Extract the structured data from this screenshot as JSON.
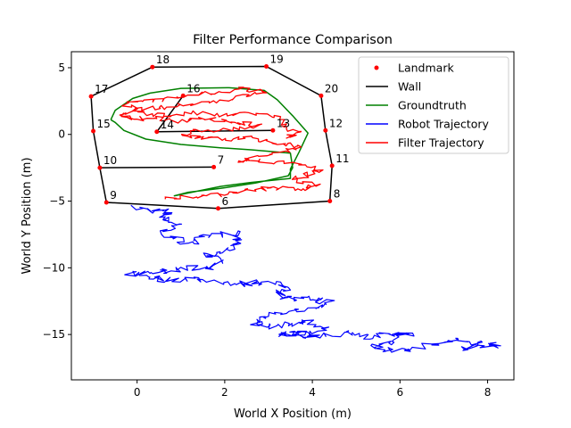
{
  "chart_data": {
    "type": "line",
    "title": "Filter Performance Comparison",
    "xlabel": "World X Position (m)",
    "ylabel": "World Y Position (m)",
    "xlim": [
      -1.5,
      8.6
    ],
    "ylim": [
      -18.4,
      6.2
    ],
    "xticks": [
      0,
      2,
      4,
      6,
      8
    ],
    "yticks": [
      5,
      0,
      -5,
      -10,
      -15
    ],
    "grid": false,
    "legend_position": "top-right",
    "legend": [
      {
        "label": "Landmark",
        "color": "#ff0000",
        "style": "marker"
      },
      {
        "label": "Wall",
        "color": "#000000",
        "style": "line"
      },
      {
        "label": "Groundtruth",
        "color": "#008000",
        "style": "line"
      },
      {
        "label": "Robot Trajectory",
        "color": "#0000ff",
        "style": "line"
      },
      {
        "label": "Filter Trajectory",
        "color": "#ff0000",
        "style": "line"
      }
    ],
    "landmarks": [
      {
        "id": "6",
        "x": 1.85,
        "y": -5.55
      },
      {
        "id": "7",
        "x": 1.75,
        "y": -2.45
      },
      {
        "id": "8",
        "x": 4.4,
        "y": -5.0
      },
      {
        "id": "9",
        "x": -0.7,
        "y": -5.1
      },
      {
        "id": "10",
        "x": -0.85,
        "y": -2.5
      },
      {
        "id": "11",
        "x": 4.45,
        "y": -2.35
      },
      {
        "id": "12",
        "x": 4.3,
        "y": 0.3
      },
      {
        "id": "13",
        "x": 3.1,
        "y": 0.3
      },
      {
        "id": "14",
        "x": 0.45,
        "y": 0.2
      },
      {
        "id": "15",
        "x": -1.0,
        "y": 0.25
      },
      {
        "id": "16",
        "x": 1.05,
        "y": 2.9
      },
      {
        "id": "17",
        "x": -1.05,
        "y": 2.85
      },
      {
        "id": "18",
        "x": 0.35,
        "y": 5.05
      },
      {
        "id": "19",
        "x": 2.95,
        "y": 5.1
      },
      {
        "id": "20",
        "x": 4.2,
        "y": 2.9
      }
    ],
    "walls": [
      [
        [
          0.35,
          5.05
        ],
        [
          2.95,
          5.1
        ],
        [
          4.2,
          2.9
        ],
        [
          4.3,
          0.3
        ],
        [
          4.45,
          -2.35
        ],
        [
          4.4,
          -5.0
        ],
        [
          1.85,
          -5.55
        ],
        [
          -0.7,
          -5.1
        ],
        [
          -0.85,
          -2.5
        ],
        [
          -1.0,
          0.25
        ],
        [
          -1.05,
          2.85
        ],
        [
          0.35,
          5.05
        ]
      ],
      [
        [
          -0.85,
          -2.5
        ],
        [
          1.75,
          -2.45
        ]
      ],
      [
        [
          0.45,
          0.2
        ],
        [
          3.1,
          0.3
        ]
      ],
      [
        [
          0.45,
          0.2
        ],
        [
          1.05,
          2.9
        ]
      ]
    ],
    "groundtruth": [
      [
        -0.6,
        1.1
      ],
      [
        -0.5,
        1.8
      ],
      [
        -0.1,
        2.7
      ],
      [
        0.3,
        3.1
      ],
      [
        1.0,
        3.45
      ],
      [
        2.1,
        3.5
      ],
      [
        2.9,
        3.3
      ],
      [
        3.2,
        2.6
      ],
      [
        3.55,
        1.4
      ],
      [
        3.9,
        0.1
      ],
      [
        3.7,
        -1.3
      ],
      [
        3.5,
        -2.6
      ],
      [
        3.5,
        -3.3
      ],
      [
        2.6,
        -3.6
      ],
      [
        1.9,
        -3.9
      ],
      [
        1.3,
        -4.3
      ],
      [
        0.85,
        -4.6
      ],
      [
        1.15,
        -4.35
      ],
      [
        1.9,
        -4.05
      ],
      [
        2.7,
        -3.65
      ],
      [
        3.45,
        -3.1
      ],
      [
        3.55,
        -2.5
      ],
      [
        3.5,
        -1.4
      ],
      [
        2.6,
        -1.15
      ],
      [
        1.9,
        -1.0
      ],
      [
        1.0,
        -0.75
      ],
      [
        0.2,
        -0.35
      ],
      [
        -0.3,
        0.3
      ],
      [
        -0.5,
        0.9
      ],
      [
        -0.6,
        1.1
      ]
    ],
    "robot_trajectory": [
      [
        0.0,
        -5.5
      ],
      [
        0.3,
        -5.7
      ],
      [
        0.7,
        -5.8
      ],
      [
        0.6,
        -6.3
      ],
      [
        0.9,
        -6.7
      ],
      [
        0.6,
        -7.3
      ],
      [
        0.9,
        -7.9
      ],
      [
        1.3,
        -8.1
      ],
      [
        1.7,
        -7.6
      ],
      [
        2.2,
        -7.4
      ],
      [
        2.3,
        -8.1
      ],
      [
        2.0,
        -8.7
      ],
      [
        1.6,
        -9.0
      ],
      [
        1.9,
        -9.6
      ],
      [
        1.6,
        -10.1
      ],
      [
        1.0,
        -10.0
      ],
      [
        0.6,
        -10.3
      ],
      [
        0.2,
        -10.5
      ],
      [
        -0.2,
        -10.4
      ],
      [
        0.3,
        -10.7
      ],
      [
        0.7,
        -10.9
      ],
      [
        1.2,
        -10.8
      ],
      [
        1.8,
        -11.0
      ],
      [
        2.3,
        -11.3
      ],
      [
        2.7,
        -11.0
      ],
      [
        3.1,
        -11.2
      ],
      [
        3.5,
        -11.5
      ],
      [
        3.2,
        -12.0
      ],
      [
        3.6,
        -12.4
      ],
      [
        4.0,
        -12.3
      ],
      [
        4.4,
        -12.6
      ],
      [
        4.1,
        -13.0
      ],
      [
        3.5,
        -13.2
      ],
      [
        3.0,
        -13.6
      ],
      [
        2.6,
        -14.1
      ],
      [
        3.0,
        -14.4
      ],
      [
        3.5,
        -14.2
      ],
      [
        3.9,
        -14.0
      ],
      [
        4.3,
        -14.6
      ],
      [
        4.0,
        -15.0
      ],
      [
        3.6,
        -14.8
      ],
      [
        3.2,
        -15.0
      ],
      [
        3.8,
        -15.1
      ],
      [
        4.4,
        -15.0
      ],
      [
        5.0,
        -14.8
      ],
      [
        5.3,
        -15.3
      ],
      [
        5.7,
        -15.0
      ],
      [
        6.2,
        -14.9
      ],
      [
        5.9,
        -15.5
      ],
      [
        5.4,
        -15.9
      ],
      [
        5.8,
        -16.2
      ],
      [
        6.3,
        -16.0
      ],
      [
        6.9,
        -15.7
      ],
      [
        7.3,
        -15.4
      ],
      [
        7.8,
        -15.6
      ],
      [
        7.5,
        -16.0
      ],
      [
        8.1,
        -15.9
      ],
      [
        8.2,
        -15.6
      ]
    ],
    "filter_trajectory": [
      [
        0.6,
        -4.9
      ],
      [
        1.1,
        -4.6
      ],
      [
        1.7,
        -4.6
      ],
      [
        2.2,
        -4.3
      ],
      [
        2.7,
        -4.1
      ],
      [
        3.2,
        -4.0
      ],
      [
        3.7,
        -4.2
      ],
      [
        4.1,
        -3.8
      ],
      [
        3.6,
        -3.4
      ],
      [
        3.9,
        -3.0
      ],
      [
        4.2,
        -2.7
      ],
      [
        3.8,
        -2.4
      ],
      [
        3.3,
        -2.1
      ],
      [
        2.7,
        -1.9
      ],
      [
        2.2,
        -2.0
      ],
      [
        2.9,
        -1.6
      ],
      [
        3.4,
        -1.2
      ],
      [
        3.8,
        -1.0
      ],
      [
        3.4,
        -0.7
      ],
      [
        3.0,
        -0.6
      ],
      [
        2.6,
        -0.3
      ],
      [
        2.0,
        -0.4
      ],
      [
        1.5,
        -0.2
      ],
      [
        1.0,
        0.0
      ],
      [
        1.5,
        0.3
      ],
      [
        2.2,
        0.4
      ],
      [
        2.8,
        0.6
      ],
      [
        2.4,
        0.9
      ],
      [
        1.9,
        1.0
      ],
      [
        1.4,
        1.2
      ],
      [
        0.8,
        1.0
      ],
      [
        0.4,
        1.3
      ],
      [
        -0.1,
        1.1
      ],
      [
        -0.4,
        1.4
      ],
      [
        0.0,
        1.9
      ],
      [
        0.6,
        2.0
      ],
      [
        1.2,
        2.3
      ],
      [
        1.9,
        2.5
      ],
      [
        2.5,
        2.9
      ],
      [
        3.0,
        3.2
      ],
      [
        2.4,
        3.4
      ],
      [
        1.9,
        3.2
      ],
      [
        1.3,
        3.0
      ],
      [
        0.8,
        2.7
      ],
      [
        0.2,
        2.5
      ],
      [
        -0.3,
        2.2
      ],
      [
        0.2,
        1.6
      ],
      [
        0.7,
        1.4
      ],
      [
        1.3,
        1.6
      ],
      [
        2.0,
        1.4
      ],
      [
        2.6,
        1.6
      ],
      [
        3.2,
        1.3
      ],
      [
        3.4,
        0.5
      ],
      [
        3.7,
        0.1
      ],
      [
        3.4,
        -0.3
      ]
    ]
  }
}
